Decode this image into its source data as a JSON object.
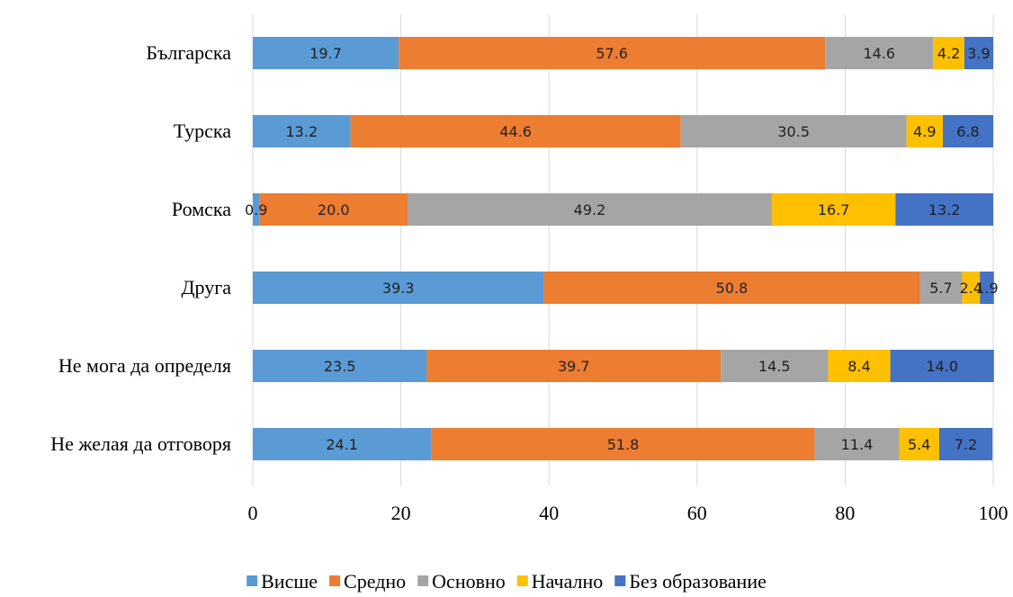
{
  "chart_data": {
    "type": "bar",
    "orientation": "horizontal",
    "stacked": true,
    "categories": [
      "Българска",
      "Турска",
      "Ромска",
      "Друга",
      "Не мога да определя",
      "Не желая да отговоря"
    ],
    "series": [
      {
        "name": "Висше",
        "color": "#5B9BD5",
        "label_color": "#1f1f1f",
        "values": [
          19.7,
          13.2,
          0.9,
          39.3,
          23.5,
          24.1
        ]
      },
      {
        "name": "Средно",
        "color": "#ED7D31",
        "label_color": "#1f1f1f",
        "values": [
          57.6,
          44.6,
          20.0,
          50.8,
          39.7,
          51.8
        ]
      },
      {
        "name": "Основно",
        "color": "#A5A5A5",
        "label_color": "#1f1f1f",
        "values": [
          14.6,
          30.5,
          49.2,
          5.7,
          14.5,
          11.4
        ]
      },
      {
        "name": "Начално",
        "color": "#FFC000",
        "label_color": "#1f1f1f",
        "values": [
          4.2,
          4.9,
          16.7,
          2.4,
          8.4,
          5.4
        ]
      },
      {
        "name": "Без образование",
        "color": "#4472C4",
        "label_color": "#1f1f1f",
        "values": [
          3.9,
          6.8,
          13.2,
          1.9,
          14.0,
          7.2
        ]
      }
    ],
    "xlim": [
      0,
      100
    ],
    "x_ticks": [
      0,
      20,
      40,
      60,
      80,
      100
    ],
    "title": "",
    "xlabel": "",
    "ylabel": "",
    "grid": true,
    "legend_position": "bottom",
    "data_label_decimals": 1
  }
}
